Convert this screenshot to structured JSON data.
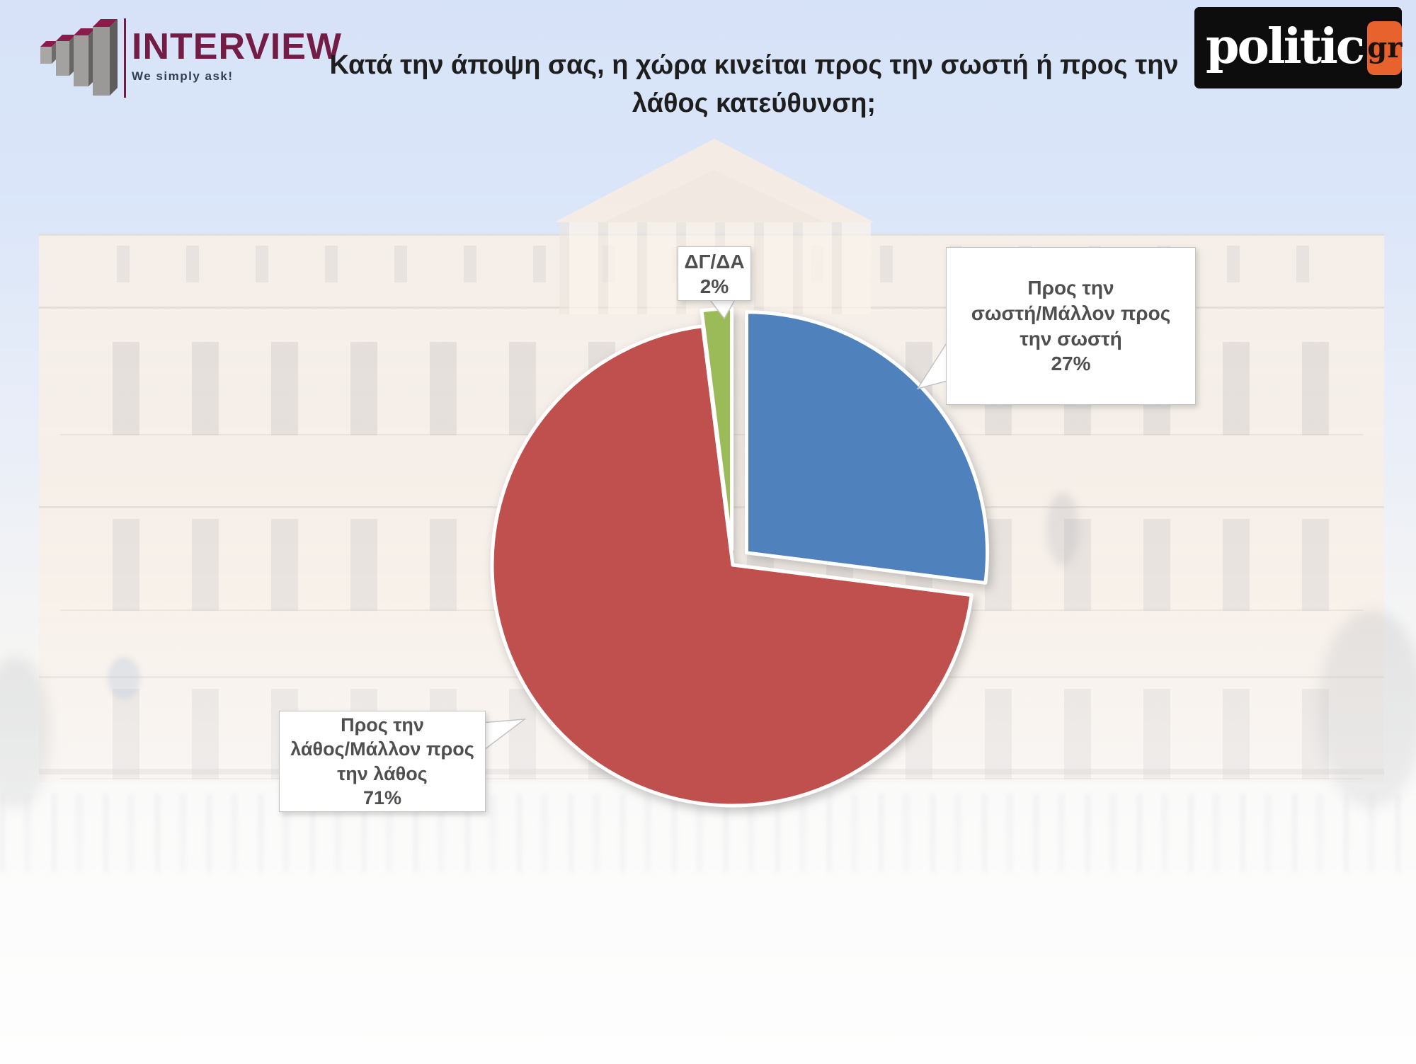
{
  "header": {
    "interview_logo": {
      "name": "INTERVIEW",
      "tagline": "We simply ask!"
    },
    "politic_logo": {
      "name": "politic",
      "suffix": "gr",
      "accent_color": "#e8622d"
    },
    "title": "Κατά την άποψη σας, η χώρα κινείται προς την σωστή ή προς την λάθος κατεύθυνση;"
  },
  "chart_data": {
    "type": "pie",
    "title": "Κατά την άποψη σας, η χώρα κινείται προς την σωστή ή προς την λάθος κατεύθυνση;",
    "start_angle_deg": 0,
    "direction": "clockwise",
    "slices": [
      {
        "label": "Προς την σωστή/Μάλλον προς την σωστή",
        "value": 27,
        "color": "#4F81BD",
        "exploded": true
      },
      {
        "label": "Προς την λάθος/Μάλλον προς την λάθος",
        "value": 71,
        "color": "#C0504D",
        "exploded": false
      },
      {
        "label": "ΔΓ/ΔΑ",
        "value": 2,
        "color": "#9BBB59",
        "exploded": true
      }
    ],
    "legend_position": "callouts"
  },
  "callouts": {
    "dgda": {
      "lines": [
        "ΔΓ/ΔΑ",
        "2%"
      ]
    },
    "right": {
      "lines": [
        "Προς την",
        "σωστή/Μάλλον προς",
        "την σωστή",
        "27%"
      ]
    },
    "left": {
      "lines": [
        "Προς την",
        "λάθος/Μάλλον προς",
        "την λάθος",
        "71%"
      ]
    }
  }
}
